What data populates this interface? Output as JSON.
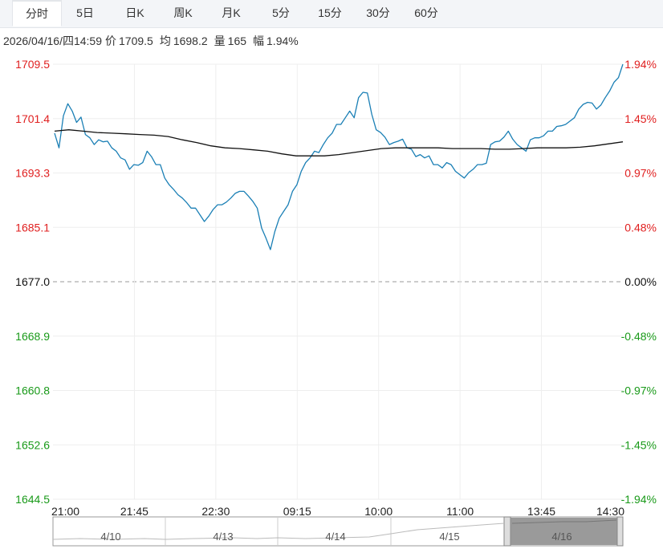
{
  "tabs": [
    "分时",
    "5日",
    "日K",
    "周K",
    "月K",
    "5分",
    "15分",
    "30分",
    "60分"
  ],
  "active_tab": 0,
  "info": {
    "datetime": "2026/04/16/四14:59",
    "price_label": "价",
    "price": "1709.5",
    "avg_label": "均",
    "avg": "1698.2",
    "vol_label": "量",
    "vol": "165",
    "chg_label": "幅",
    "chg": "1.94%"
  },
  "colors": {
    "up": "#e02020",
    "down": "#1a9a1a",
    "price_line": "#1a7fb5",
    "avg_line": "#111111",
    "grid": "#eeeeee"
  },
  "chart_data": {
    "type": "line",
    "prev_close": 1677.0,
    "ylim": [
      1644.5,
      1709.5
    ],
    "y_ticks": [
      "1709.5",
      "1701.4",
      "1693.3",
      "1685.1",
      "1677.0",
      "1668.9",
      "1660.8",
      "1652.6",
      "1644.5"
    ],
    "pct_ticks": [
      "1.94%",
      "1.45%",
      "0.97%",
      "0.48%",
      "0.00%",
      "-0.48%",
      "-0.97%",
      "-1.45%",
      "-1.94%"
    ],
    "x_labels": [
      "21:00",
      "21:45",
      "22:30",
      "09:15",
      "10:00",
      "11:00",
      "13:45",
      "14:30"
    ],
    "series": [
      {
        "values": [
          1699.2,
          1697,
          1701.8,
          1703.6,
          1702.5,
          1700.8,
          1701.6,
          1699,
          1698.5,
          1697.5,
          1698.2,
          1697.9,
          1698,
          1697,
          1696.5,
          1695.5,
          1695.2,
          1693.8,
          1694.5,
          1694.4,
          1694.8,
          1696.5,
          1695.7,
          1694.5,
          1694.5,
          1692.5,
          1691.5,
          1690.8,
          1690,
          1689.5,
          1688.8,
          1688,
          1688,
          1687,
          1686,
          1686.8,
          1687.8,
          1688.5,
          1688.5,
          1688.9,
          1689.5,
          1690.2,
          1690.5,
          1690.5,
          1689.8,
          1689,
          1688,
          1685,
          1683.5,
          1681.8,
          1684.5,
          1686.5,
          1687.5,
          1688.5,
          1690.5,
          1691.5,
          1693.5,
          1694.8,
          1695.5,
          1696.5,
          1696.3,
          1697.5,
          1698.5,
          1699.2,
          1700.5,
          1700.5,
          1701.5,
          1702.5,
          1701.5,
          1704.5,
          1705.3,
          1705.2,
          1702,
          1699.7,
          1699.3,
          1698.6,
          1697.5,
          1697.8,
          1698,
          1698.3,
          1697,
          1696.8,
          1695.7,
          1696,
          1695.5,
          1695.8,
          1694.5,
          1694.5,
          1694,
          1694.8,
          1694.5,
          1693.5,
          1693,
          1692.5,
          1693.3,
          1693.8,
          1694.5,
          1694.5,
          1694.7,
          1697.5,
          1697.9,
          1698,
          1698.6,
          1699.5,
          1698.3,
          1697.5,
          1697,
          1696.5,
          1698.2,
          1698.5,
          1698.5,
          1698.8,
          1699.5,
          1699.5,
          1700.2,
          1700.3,
          1700.5,
          1701,
          1701.5,
          1702.8,
          1703.5,
          1703.8,
          1703.7,
          1702.8,
          1703.4,
          1704.5,
          1705.5,
          1706.8,
          1707.5,
          1709.5
        ]
      },
      {
        "values": [
          1699.5,
          1699.7,
          1699.5,
          1699.3,
          1699.2,
          1699.1,
          1699.0,
          1698.9,
          1698.7,
          1698.2,
          1697.8,
          1697.3,
          1697.0,
          1696.9,
          1696.7,
          1696.5,
          1696.1,
          1695.8,
          1695.8,
          1695.8,
          1696.0,
          1696.3,
          1696.6,
          1696.9,
          1697.0,
          1697.0,
          1697.0,
          1697.0,
          1696.9,
          1696.9,
          1696.9,
          1696.8,
          1696.8,
          1696.9,
          1697.0,
          1697.0,
          1697.0,
          1697.1,
          1697.3,
          1697.6,
          1697.9
        ]
      }
    ]
  }
}
